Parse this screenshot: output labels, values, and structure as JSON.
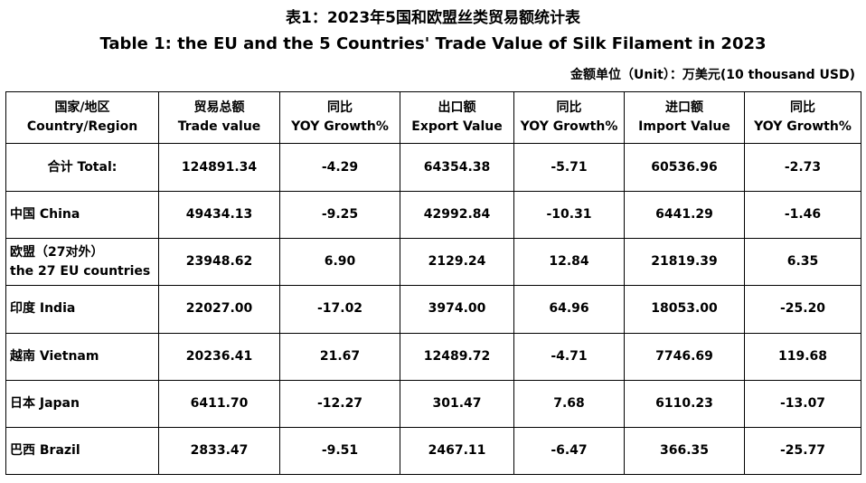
{
  "title_cn": "表1：2023年5国和欧盟丝类贸易额统计表",
  "title_en": "Table 1: the EU and the 5 Countries' Trade Value of Silk Filament in 2023",
  "unit": "金额单位（Unit）：万美元(10 thousand USD)",
  "headers": [
    {
      "cn": "国家/地区",
      "en": "Country/Region"
    },
    {
      "cn": "贸易总额",
      "en": "Trade value"
    },
    {
      "cn": "同比",
      "en": "YOY Growth%"
    },
    {
      "cn": "出口额",
      "en": "Export Value"
    },
    {
      "cn": "同比",
      "en": "YOY Growth%"
    },
    {
      "cn": "进口额",
      "en": "Import Value"
    },
    {
      "cn": "同比",
      "en": "YOY Growth%"
    }
  ],
  "rows": [
    {
      "country": "合计 Total:",
      "trade": "124891.34",
      "trade_yoy": "-4.29",
      "export": "64354.38",
      "export_yoy": "-5.71",
      "import": "60536.96",
      "import_yoy": "-2.73"
    },
    {
      "country": "中国 China",
      "trade": "49434.13",
      "trade_yoy": "-9.25",
      "export": "42992.84",
      "export_yoy": "-10.31",
      "import": "6441.29",
      "import_yoy": "-1.46"
    },
    {
      "country_line1": "欧盟（27对外）",
      "country_line2": "the 27 EU countries",
      "trade": "23948.62",
      "trade_yoy": "6.90",
      "export": "2129.24",
      "export_yoy": "12.84",
      "import": "21819.39",
      "import_yoy": "6.35"
    },
    {
      "country": "印度 India",
      "trade": "22027.00",
      "trade_yoy": "-17.02",
      "export": "3974.00",
      "export_yoy": "64.96",
      "import": "18053.00",
      "import_yoy": "-25.20"
    },
    {
      "country": "越南 Vietnam",
      "trade": "20236.41",
      "trade_yoy": "21.67",
      "export": "12489.72",
      "export_yoy": "-4.71",
      "import": "7746.69",
      "import_yoy": "119.68"
    },
    {
      "country": "日本 Japan",
      "trade": "6411.70",
      "trade_yoy": "-12.27",
      "export": "301.47",
      "export_yoy": "7.68",
      "import": "6110.23",
      "import_yoy": "-13.07"
    },
    {
      "country": "巴西 Brazil",
      "trade": "2833.47",
      "trade_yoy": "-9.51",
      "export": "2467.11",
      "export_yoy": "-6.47",
      "import": "366.35",
      "import_yoy": "-25.77"
    }
  ]
}
